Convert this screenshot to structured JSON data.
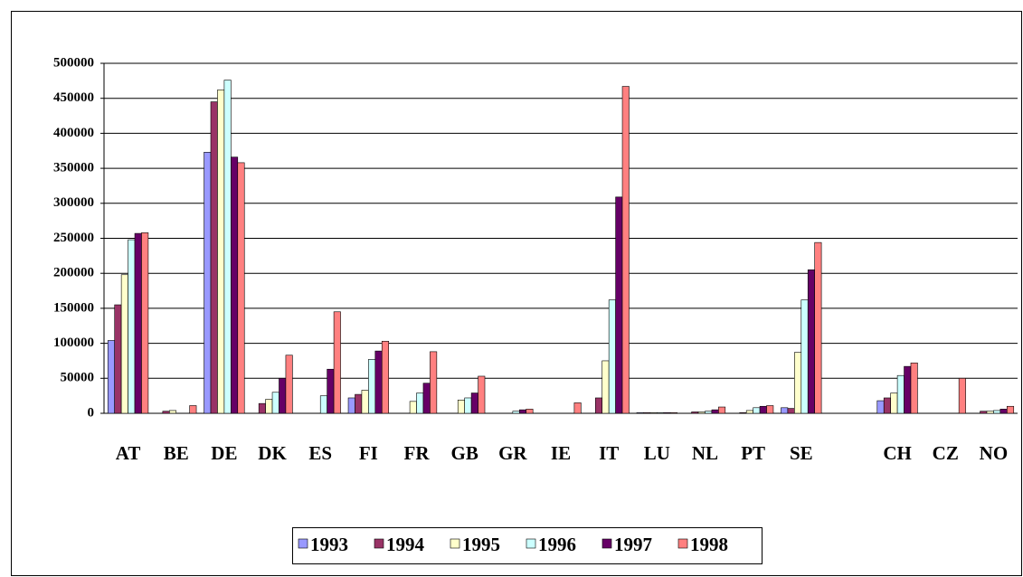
{
  "chart_data": {
    "type": "bar",
    "categories": [
      "AT",
      "BE",
      "DE",
      "DK",
      "ES",
      "FI",
      "FR",
      "GB",
      "GR",
      "IE",
      "IT",
      "LU",
      "NL",
      "PT",
      "SE",
      null,
      "CH",
      "CZ",
      "NO"
    ],
    "series": [
      {
        "name": "1993",
        "color": "#9999ff",
        "values": [
          104000,
          0,
          373000,
          0,
          0,
          22000,
          0,
          0,
          0,
          0,
          0,
          1000,
          0,
          0,
          8000,
          null,
          18000,
          0,
          0
        ]
      },
      {
        "name": "1994",
        "color": "#993366",
        "values": [
          155000,
          3000,
          445000,
          14000,
          0,
          27000,
          0,
          0,
          0,
          0,
          22000,
          1000,
          2000,
          1000,
          7000,
          null,
          22000,
          0,
          3000
        ]
      },
      {
        "name": "1995",
        "color": "#ffffcc",
        "values": [
          198000,
          4000,
          462000,
          20000,
          0,
          33000,
          17000,
          19000,
          0,
          0,
          75000,
          1000,
          2000,
          4000,
          87000,
          null,
          29000,
          0,
          3000
        ]
      },
      {
        "name": "1996",
        "color": "#ccffff",
        "values": [
          248000,
          0,
          476000,
          30000,
          25000,
          77000,
          29000,
          22000,
          3000,
          0,
          162000,
          1000,
          3000,
          8000,
          162000,
          null,
          54000,
          0,
          4000
        ]
      },
      {
        "name": "1997",
        "color": "#660066",
        "values": [
          257000,
          0,
          366000,
          50000,
          63000,
          89000,
          43000,
          29000,
          5000,
          0,
          309000,
          1000,
          5000,
          10000,
          205000,
          null,
          67000,
          0,
          6000
        ]
      },
      {
        "name": "1998",
        "color": "#ff8080",
        "values": [
          258000,
          11000,
          358000,
          83000,
          145000,
          103000,
          88000,
          53000,
          6000,
          15000,
          467000,
          1000,
          9000,
          11000,
          244000,
          null,
          72000,
          50000,
          10000
        ]
      }
    ],
    "ylim": [
      0,
      500000
    ],
    "yticks": [
      0,
      50000,
      100000,
      150000,
      200000,
      250000,
      300000,
      350000,
      400000,
      450000,
      500000
    ],
    "grid": true
  }
}
